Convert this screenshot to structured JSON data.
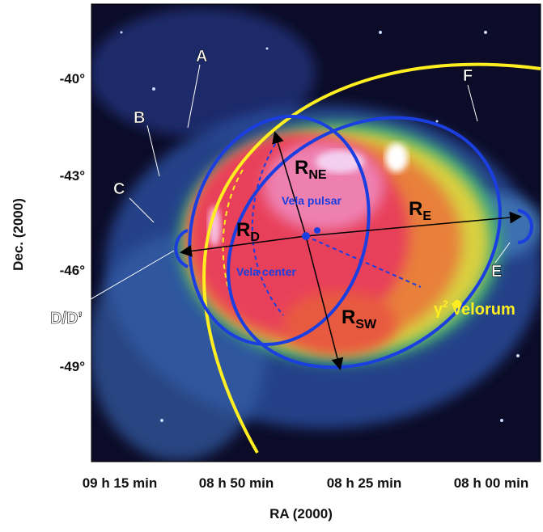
{
  "y_axis": {
    "label": "Dec. (2000)",
    "ticks": [
      "-40°",
      "-43°",
      "-46°",
      "-49°"
    ]
  },
  "x_axis": {
    "label": "RA (2000)",
    "ticks": [
      "09 h 15 min",
      "08 h 50 min",
      "08 h 25 min",
      "08 h 00 min"
    ]
  },
  "region_labels": {
    "a": "A",
    "b": "B",
    "c": "C",
    "d": "D/D’",
    "e": "E",
    "f": "F"
  },
  "radii": {
    "ne": {
      "main": "R",
      "sub": "NE"
    },
    "d": {
      "main": "R",
      "sub": "D"
    },
    "e": {
      "main": "R",
      "sub": "E"
    },
    "sw": {
      "main": "R",
      "sub": "SW"
    }
  },
  "markers": {
    "pulsar": "Vela pulsar",
    "center": "Vela center",
    "star": {
      "symbol": "γ",
      "sup": "2",
      "name": "Velorum"
    }
  }
}
